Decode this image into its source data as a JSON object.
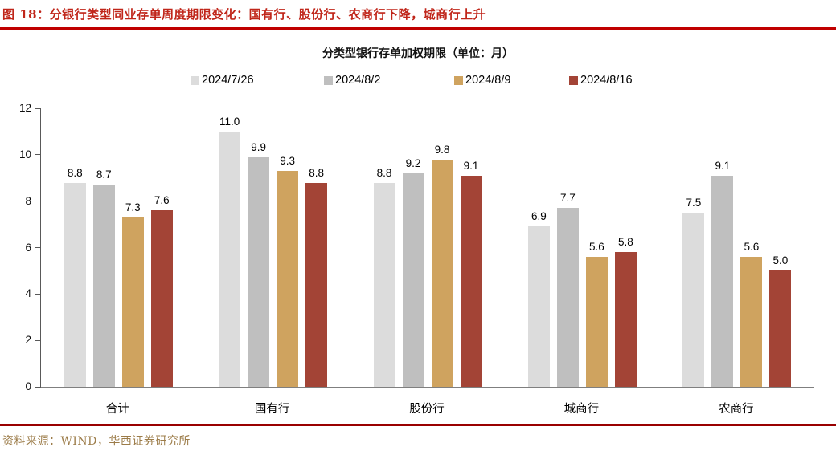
{
  "header": {
    "title": "图 18：分银行类型同业存单周度期限变化：国有行、股份行、农商行下降，城商行上升"
  },
  "footer": {
    "source": "资料来源：WIND，华西证券研究所"
  },
  "colors": {
    "header_text": "#c0261a",
    "header_rule": "#c00000",
    "footer_rule": "#990000",
    "source_text": "#9c7c49",
    "axis": "#595959",
    "baseline": "#7f7f7f"
  },
  "chart_data": {
    "type": "bar",
    "title": "分类型银行存单加权期限（单位：月）",
    "categories": [
      "合计",
      "国有行",
      "股份行",
      "城商行",
      "农商行"
    ],
    "series": [
      {
        "name": "2024/7/26",
        "color": "#dcdcdc",
        "values": [
          8.8,
          11.0,
          8.8,
          6.9,
          7.5
        ]
      },
      {
        "name": "2024/8/2",
        "color": "#bfbfbf",
        "values": [
          8.7,
          9.9,
          9.2,
          7.7,
          9.1
        ]
      },
      {
        "name": "2024/8/9",
        "color": "#cfa35f",
        "values": [
          7.3,
          9.3,
          9.8,
          5.6,
          5.6
        ]
      },
      {
        "name": "2024/8/16",
        "color": "#a34436",
        "values": [
          7.6,
          8.8,
          9.1,
          5.8,
          5.0
        ]
      }
    ],
    "ylim": [
      0,
      12
    ],
    "yticks": [
      0,
      2,
      4,
      6,
      8,
      10,
      12
    ],
    "grid": false,
    "legend_position": "top",
    "value_label_decimals": 1
  }
}
